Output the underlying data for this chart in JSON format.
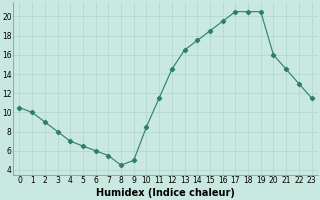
{
  "x": [
    0,
    1,
    2,
    3,
    4,
    5,
    6,
    7,
    8,
    9,
    10,
    11,
    12,
    13,
    14,
    15,
    16,
    17,
    18,
    19,
    20,
    21,
    22,
    23
  ],
  "y": [
    10.5,
    10,
    9,
    8,
    7,
    6.5,
    6,
    5.5,
    4.5,
    5,
    8.5,
    11.5,
    14.5,
    16.5,
    17.5,
    18.5,
    19.5,
    20.5,
    20.5,
    20.5,
    16,
    14.5,
    13,
    11.5
  ],
  "line_color": "#2e7d6e",
  "marker": "D",
  "marker_size": 2.2,
  "bg_color": "#c8e8e0",
  "grid_color": "#b0d4cc",
  "xlabel": "Humidex (Indice chaleur)",
  "ylim": [
    3.5,
    21.5
  ],
  "xlim": [
    -0.5,
    23.5
  ],
  "yticks": [
    4,
    6,
    8,
    10,
    12,
    14,
    16,
    18,
    20
  ],
  "xticks": [
    0,
    1,
    2,
    3,
    4,
    5,
    6,
    7,
    8,
    9,
    10,
    11,
    12,
    13,
    14,
    15,
    16,
    17,
    18,
    19,
    20,
    21,
    22,
    23
  ],
  "xtick_labels": [
    "0",
    "1",
    "2",
    "3",
    "4",
    "5",
    "6",
    "7",
    "8",
    "9",
    "10",
    "11",
    "12",
    "13",
    "14",
    "15",
    "16",
    "17",
    "18",
    "19",
    "20",
    "21",
    "22",
    "23"
  ],
  "tick_fontsize": 5.5,
  "label_fontsize": 7,
  "linewidth": 0.8
}
